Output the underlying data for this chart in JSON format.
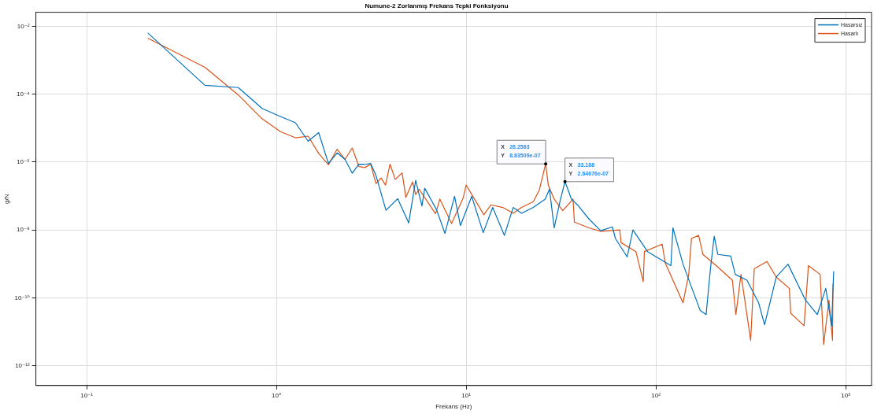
{
  "chart_data": {
    "type": "line",
    "title": "Numune-2 Zorlanmış Frekans Tepki Fonksiyonu",
    "xlabel": "Frekans (Hz)",
    "ylabel": "g/N",
    "log": "xy",
    "grid": true,
    "legend": "top right",
    "marker": "none",
    "line_style": "solid",
    "xlim": [
      0.054,
      1370
    ],
    "xticks": [
      {
        "value": 0.1,
        "label": "10⁻¹"
      },
      {
        "value": 1,
        "label": "10⁰"
      },
      {
        "value": 10,
        "label": "10¹"
      },
      {
        "value": 100,
        "label": "10²"
      },
      {
        "value": 1000,
        "label": "10³"
      }
    ],
    "ylim": [
      2.6e-13,
      0.026
    ],
    "yticks": [
      {
        "value": 1e-12,
        "label": "10⁻¹²"
      },
      {
        "value": 1e-10,
        "label": "10⁻¹⁰"
      },
      {
        "value": 1e-08,
        "label": "10⁻⁸"
      },
      {
        "value": 1e-06,
        "label": "10⁻⁶"
      },
      {
        "value": 0.0001,
        "label": "10⁻⁴"
      },
      {
        "value": 0.01,
        "label": "10⁻²"
      }
    ],
    "series": [
      {
        "name": "Hasarsız",
        "color": "#0072bd",
        "x": [
          0.21,
          0.42,
          0.63,
          0.84,
          1.05,
          1.26,
          1.47,
          1.67,
          1.88,
          2.09,
          2.3,
          2.51,
          2.72,
          2.93,
          3.14,
          3.35,
          3.78,
          4.36,
          4.98,
          5.42,
          5.85,
          6.05,
          6.99,
          7.73,
          8.69,
          9.33,
          10.7,
          12.3,
          13.8,
          15.9,
          17.7,
          19.6,
          22.6,
          26.1,
          27.5,
          29.1,
          31.2,
          33.188,
          35.9,
          38.6,
          44.4,
          51.2,
          59,
          61.2,
          70.6,
          75.7,
          90.4,
          120,
          123,
          139,
          171,
          184,
          194,
          203,
          212,
          248,
          262,
          302,
          348,
          374,
          431,
          497,
          615,
          709,
          786,
          844,
          865
        ],
        "values": [
          0.0064,
          0.000183,
          0.000157,
          3.8e-05,
          2.2e-05,
          1.44e-05,
          4.1e-06,
          7.4e-06,
          9.1e-07,
          1.86e-06,
          1.2e-06,
          4.7e-07,
          8.7e-07,
          8.5e-07,
          9.1e-07,
          4e-07,
          3.8e-08,
          8.3e-08,
          1.6e-08,
          2.9e-07,
          5.1e-08,
          1.7e-07,
          3.9e-08,
          7.9e-09,
          9.8e-08,
          1.35e-08,
          9.8e-08,
          8.3e-09,
          4.6e-08,
          6.9e-09,
          4.6e-08,
          3.1e-08,
          4.6e-08,
          8.1e-08,
          1.6e-07,
          1.15e-08,
          6.8e-08,
          2.64676e-07,
          8.1e-08,
          5.5e-08,
          2.1e-08,
          9.5e-09,
          1.23e-08,
          5.6e-09,
          1.6e-09,
          1e-08,
          2.3e-09,
          8.9e-10,
          1.15e-08,
          9.8e-10,
          4.3e-11,
          3.2e-11,
          7.4e-10,
          6.5e-09,
          1.9e-09,
          1.7e-09,
          4.9e-10,
          3.3e-10,
          7.1e-11,
          1.6e-11,
          4.1e-10,
          9.8e-10,
          8.5e-11,
          3.2e-11,
          1.9e-10,
          1.5e-11,
          6e-10
        ]
      },
      {
        "name": "Hasarlı",
        "color": "#d95319",
        "x": [
          0.21,
          0.42,
          0.63,
          0.84,
          1.05,
          1.26,
          1.47,
          1.67,
          1.88,
          2.09,
          2.3,
          2.51,
          2.72,
          2.93,
          3.14,
          3.35,
          3.56,
          3.76,
          3.97,
          4.23,
          4.6,
          4.81,
          5.22,
          5.42,
          5.65,
          6.9,
          7.27,
          8.38,
          9.66,
          10,
          12.4,
          13.5,
          15.6,
          17.7,
          19.6,
          22.6,
          24.3,
          26.2563,
          27.1,
          29.1,
          32.3,
          36.6,
          37.2,
          44.4,
          51.2,
          64.5,
          65.6,
          78.5,
          85.8,
          87,
          108,
          112,
          139,
          149,
          154,
          168,
          177,
          212,
          253,
          264,
          281,
          316,
          330,
          385,
          431,
          505,
          514,
          604,
          637,
          734,
          766,
          817,
          853,
          858
        ],
        "values": [
          0.0045,
          0.00062,
          9.5e-05,
          1.9e-05,
          7.9e-06,
          5.2e-06,
          5.8e-06,
          1.8e-06,
          8.3e-07,
          2.4e-06,
          1.2e-06,
          2.6e-06,
          7.4e-07,
          6.9e-07,
          8.7e-07,
          2.3e-07,
          3.4e-07,
          2.1e-07,
          8.7e-07,
          3.1e-07,
          4.8e-07,
          9.1e-08,
          2.6e-07,
          1.1e-07,
          1.6e-07,
          3e-08,
          8.1e-08,
          1.55e-08,
          8.9e-08,
          2.1e-07,
          2.8e-08,
          5.5e-08,
          4.6e-08,
          3.1e-08,
          4.6e-08,
          6.8e-08,
          1.5e-07,
          8.83509e-07,
          2.1e-07,
          8.1e-08,
          3.7e-08,
          8.1e-08,
          1.7e-08,
          1.15e-08,
          9.1e-09,
          1e-08,
          4.2e-09,
          2.3e-09,
          3e-10,
          2.3e-09,
          3.8e-09,
          1.07e-09,
          7.1e-11,
          4.9e-10,
          5.6e-09,
          6.9e-09,
          1.9e-09,
          8.1e-10,
          3.3e-10,
          3.2e-11,
          4.9e-10,
          5.6e-12,
          7.2e-10,
          1.17e-09,
          4.1e-10,
          1.9e-10,
          3.5e-11,
          1.5e-11,
          8.9e-10,
          4.9e-10,
          4.2e-12,
          8.5e-11,
          5.6e-12,
          2.6e-10
        ]
      }
    ],
    "annotations": [
      {
        "text": "X  26.2563\nY  8.83509e-07",
        "x": 26.2563,
        "y": 8.83509e-07
      },
      {
        "text": "X  33.188\nY  2.64676e-07",
        "x": 33.188,
        "y": 2.64676e-07
      }
    ]
  }
}
